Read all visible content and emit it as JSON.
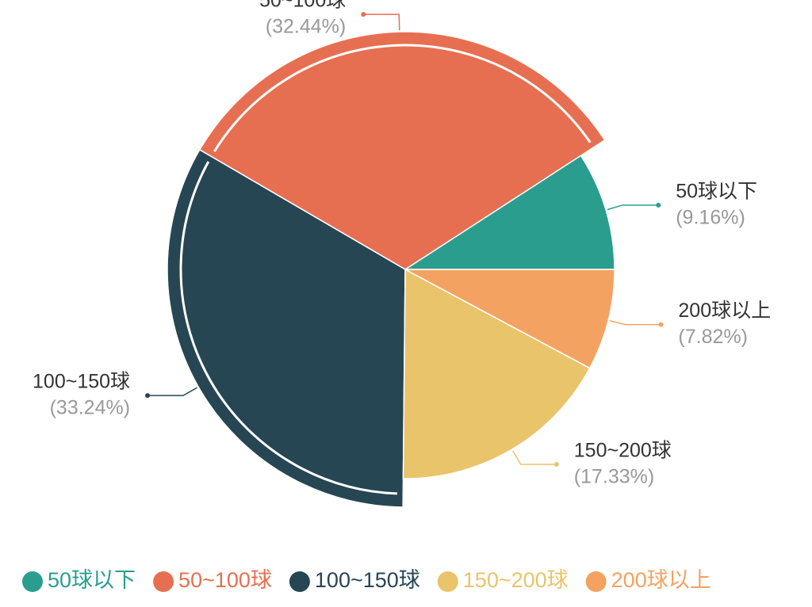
{
  "chart_data": {
    "type": "pie",
    "categories": [
      "50球以下",
      "50~100球",
      "100~150球",
      "150~200球",
      "200球以上"
    ],
    "values": [
      9.16,
      32.44,
      33.24,
      17.33,
      7.82
    ],
    "value_labels": [
      "(9.16%)",
      "(32.44%)",
      "(33.24%)",
      "(17.33%)",
      "(7.82%)"
    ],
    "colors": [
      "#2a9d8f",
      "#e76f51",
      "#264653",
      "#e9c46a",
      "#f4a261"
    ],
    "highlighted": [
      false,
      true,
      true,
      false,
      false
    ],
    "legend": "bottom"
  }
}
